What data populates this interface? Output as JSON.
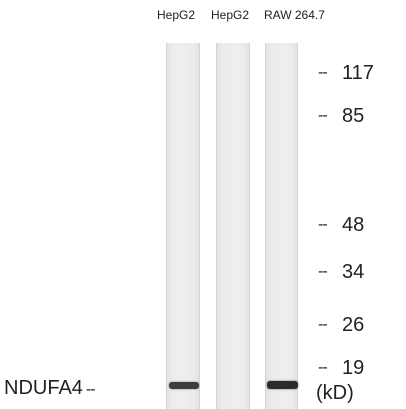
{
  "lanes": [
    {
      "label": "HepG2",
      "band_intensity": 0.9
    },
    {
      "label": "HepG2",
      "band_intensity": 0.0
    },
    {
      "label": "RAW 264.7",
      "band_intensity": 1.0
    }
  ],
  "markers": [
    {
      "dash": "--",
      "value": "117"
    },
    {
      "dash": "--",
      "value": "85"
    },
    {
      "dash": "--",
      "value": "48"
    },
    {
      "dash": "--",
      "value": "34"
    },
    {
      "dash": "--",
      "value": "26"
    },
    {
      "dash": "--",
      "value": "19"
    }
  ],
  "unit": "(kD)",
  "protein": {
    "name": "NDUFA4",
    "dash": "--"
  },
  "colors": {
    "band": "#2b2b2b",
    "lane": "#ececec",
    "text": "#1f1f1f"
  }
}
